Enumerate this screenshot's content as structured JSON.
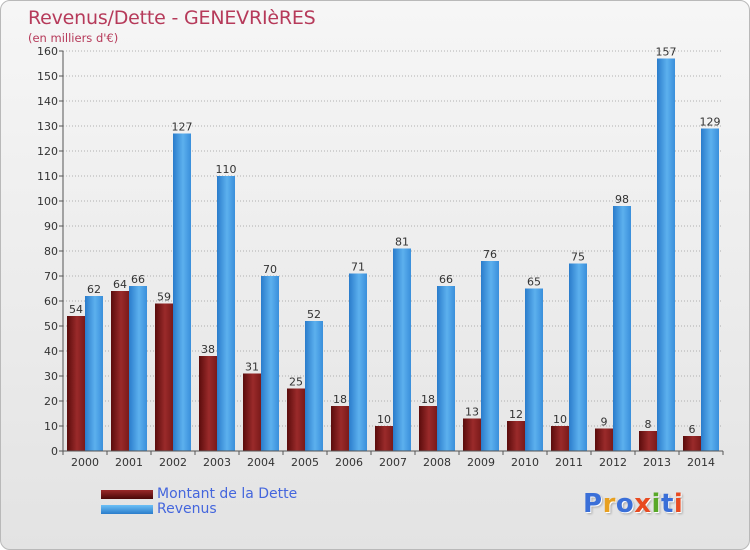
{
  "title": "Revenus/Dette - GENEVRIèRES",
  "subtitle": "(en milliers d'€)",
  "legend": {
    "debt_label": "Montant de la Dette",
    "revenue_label": "Revenus"
  },
  "logo": {
    "text": "Proxiti",
    "letter_colors": [
      "#3a6fd8",
      "#e8a020",
      "#3a6fd8",
      "#e84a20",
      "#58a828",
      "#3a6fd8",
      "#e84a20"
    ]
  },
  "colors": {
    "debt": "#7a1a1a",
    "debt_light": "#b04040",
    "revenue": "#3a8fdb",
    "revenue_light": "#5cb0ee",
    "grid": "#9a9a9a",
    "axis_text": "#333333"
  },
  "chart_data": {
    "type": "bar",
    "categories": [
      "2000",
      "2001",
      "2002",
      "2003",
      "2004",
      "2005",
      "2006",
      "2007",
      "2008",
      "2009",
      "2010",
      "2011",
      "2012",
      "2013",
      "2014"
    ],
    "series": [
      {
        "name": "Montant de la Dette",
        "values": [
          54,
          64,
          59,
          38,
          31,
          25,
          18,
          10,
          18,
          13,
          12,
          10,
          9,
          8,
          6
        ]
      },
      {
        "name": "Revenus",
        "values": [
          62,
          66,
          127,
          110,
          70,
          52,
          71,
          81,
          66,
          76,
          65,
          75,
          98,
          157,
          129
        ]
      }
    ],
    "ylim": [
      0,
      160
    ],
    "yticks": [
      0,
      10,
      20,
      30,
      40,
      50,
      60,
      70,
      80,
      90,
      100,
      110,
      120,
      130,
      140,
      150,
      160
    ],
    "grid": true,
    "legend_position": "bottom-left"
  }
}
